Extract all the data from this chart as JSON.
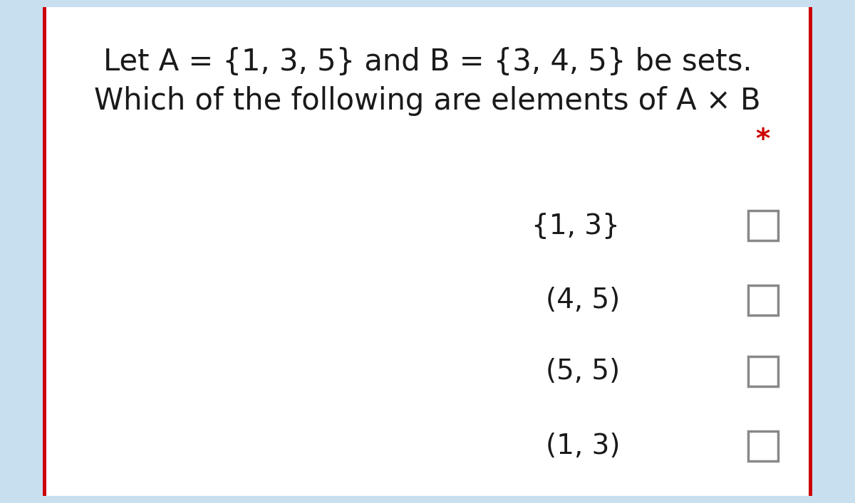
{
  "bg_outer": "#c8dff0",
  "bg_inner": "#ffffff",
  "border_color": "#cc0000",
  "title_line1": "Let A = {1, 3, 5} and B = {3, 4, 5} be sets.",
  "title_line2": "Which of the following are elements of A × B",
  "asterisk": "*",
  "asterisk_color": "#cc0000",
  "options": [
    "{1, 3}",
    "(4, 5)",
    "(5, 5)",
    "(1, 3)"
  ],
  "text_color": "#1a1a1a",
  "checkbox_edge_color": "#888888",
  "checkbox_face_color": "#ffffff",
  "title_fontsize": 30,
  "option_fontsize": 28,
  "asterisk_fontsize": 28
}
